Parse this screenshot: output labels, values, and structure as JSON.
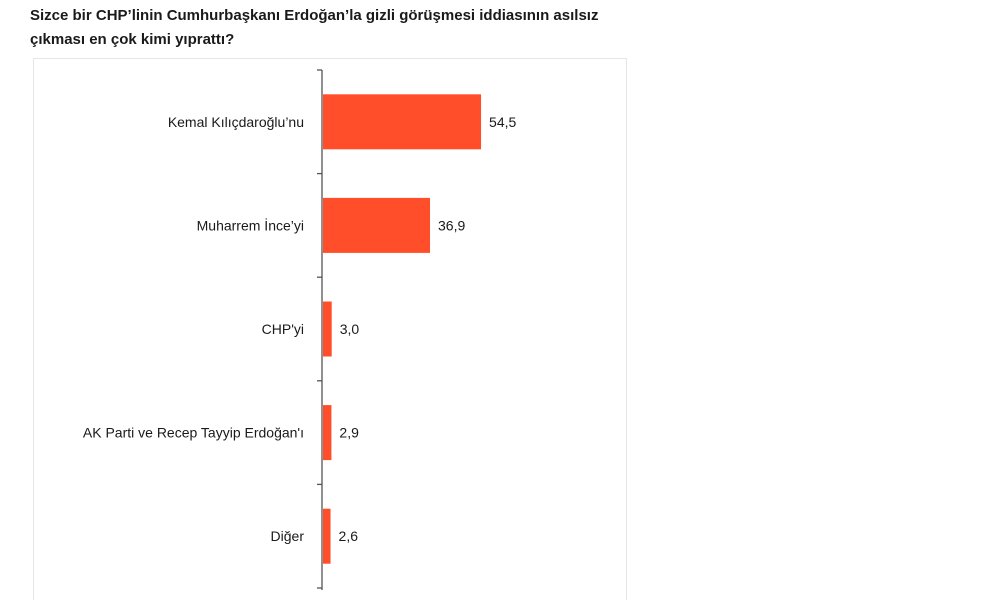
{
  "title": "Sizce bir CHP’linin Cumhurbaşkanı Erdoğan’la gizli görüşmesi iddiasının asılsız çıkması en çok kimi yıprattı?",
  "colors": {
    "bar": "#ff4e29",
    "axis": "#555555"
  },
  "chart_data": {
    "type": "bar",
    "orientation": "horizontal",
    "title": "Sizce bir CHP’linin Cumhurbaşkanı Erdoğan’la gizli görüşmesi iddiasının asılsız çıkması en çok kimi yıprattı?",
    "categories": [
      "Kemal Kılıçdaroğlu’nu",
      "Muharrem İnce’yi",
      "CHP'yi",
      "AK Parti ve Recep Tayyip Erdoğan'ı",
      "Diğer"
    ],
    "values": [
      54.5,
      36.9,
      3.0,
      2.9,
      2.6
    ],
    "value_labels": [
      "54,5",
      "36,9",
      "3,0",
      "2,9",
      "2,6"
    ],
    "xlim": [
      0,
      100
    ],
    "grid": false,
    "legend": "none"
  }
}
